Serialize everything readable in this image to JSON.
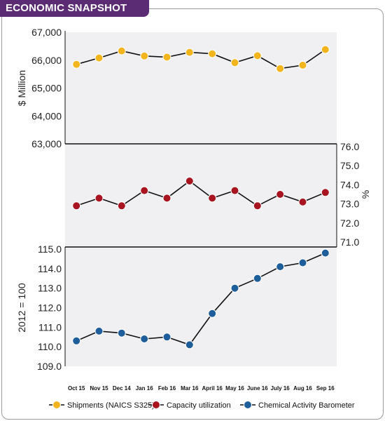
{
  "header": {
    "title": "ECONOMIC SNAPSHOT"
  },
  "chart_data": {
    "type": "line",
    "categories": [
      "Oct 15",
      "Nov 15",
      "Dec 14",
      "Jan 16",
      "Feb 16",
      "Mar 16",
      "April 16",
      "May 16",
      "June 16",
      "July 16",
      "Aug 16",
      "Sep 16"
    ],
    "panels": [
      {
        "series_name": "Shipments (NAICS S325)",
        "color": "#f2b51d",
        "ylabel": "$ Million",
        "axis_side": "left",
        "ylim": [
          63000,
          67000
        ],
        "ticks": [
          "67,000",
          "66,000",
          "65,000",
          "64,000",
          "63,000"
        ],
        "tick_values": [
          67000,
          66000,
          65000,
          64000,
          63000
        ],
        "values": [
          65850,
          66080,
          66330,
          66150,
          66110,
          66280,
          66230,
          65910,
          66160,
          65700,
          65820,
          66380
        ]
      },
      {
        "series_name": "Capacity utilization",
        "color": "#a8141f",
        "ylabel": "%",
        "axis_side": "right",
        "ylim": [
          71.0,
          76.0
        ],
        "ticks": [
          "76.0",
          "75.0",
          "74.0",
          "73.0",
          "72.0",
          "71.0"
        ],
        "tick_values": [
          76.0,
          75.0,
          74.0,
          73.0,
          72.0,
          71.0
        ],
        "values": [
          72.9,
          73.3,
          72.9,
          73.7,
          73.3,
          74.2,
          73.3,
          73.7,
          72.9,
          73.5,
          73.1,
          73.6
        ]
      },
      {
        "series_name": "Chemical Activity Barometer",
        "color": "#1e5e9b",
        "ylabel": "2012 = 100",
        "axis_side": "left",
        "ylim": [
          109.0,
          115.0
        ],
        "ticks": [
          "115.0",
          "114.0",
          "113.0",
          "112.0",
          "111.0",
          "110.0",
          "109.0"
        ],
        "tick_values": [
          115.0,
          114.0,
          113.0,
          112.0,
          111.0,
          110.0,
          109.0
        ],
        "values": [
          110.3,
          110.8,
          110.7,
          110.4,
          110.5,
          110.1,
          111.7,
          113.0,
          113.5,
          114.1,
          114.3,
          114.8
        ]
      }
    ],
    "legend": [
      "Shipments (NAICS S325)",
      "Capacity utilization",
      "Chemical Activity Barometer"
    ],
    "legend_placement": "bottom",
    "grid": false
  }
}
